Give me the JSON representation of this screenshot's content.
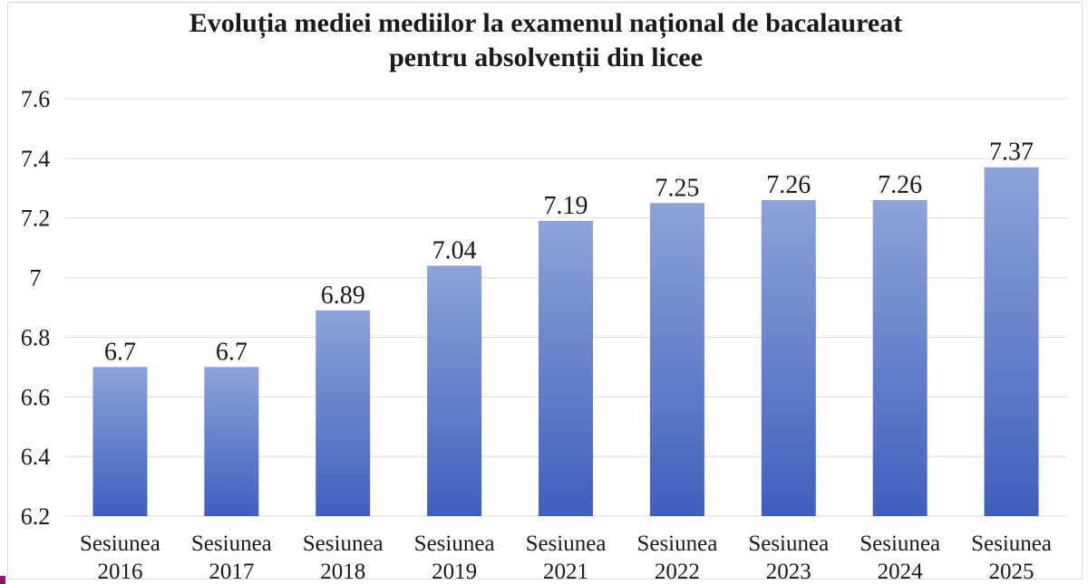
{
  "chart_data": {
    "type": "bar",
    "title_lines": [
      "Evoluția mediei mediilor la examenul național de bacalaureat",
      "pentru absolvenții din licee"
    ],
    "categories": [
      [
        "Sesiunea",
        "2016"
      ],
      [
        "Sesiunea",
        "2017"
      ],
      [
        "Sesiunea",
        "2018"
      ],
      [
        "Sesiunea",
        "2019"
      ],
      [
        "Sesiunea",
        "2021"
      ],
      [
        "Sesiunea",
        "2022"
      ],
      [
        "Sesiunea",
        "2023"
      ],
      [
        "Sesiunea",
        "2024"
      ],
      [
        "Sesiunea",
        "2025"
      ]
    ],
    "values": [
      6.7,
      6.7,
      6.89,
      7.04,
      7.19,
      7.25,
      7.26,
      7.26,
      7.37
    ],
    "data_labels": [
      "6.7",
      "6.7",
      "6.89",
      "7.04",
      "7.19",
      "7.25",
      "7.26",
      "7.26",
      "7.37"
    ],
    "y_ticks": [
      "6.2",
      "6.4",
      "6.6",
      "6.8",
      "7",
      "7.2",
      "7.4",
      "7.6"
    ],
    "ylim": [
      6.2,
      7.6
    ],
    "grid": true,
    "legend": "none",
    "colors": {
      "bar_top": "#8ea3d8",
      "bar_bottom": "#3f5fbd",
      "grid": "#d9d9d9",
      "text": "#1a1a1a"
    }
  }
}
